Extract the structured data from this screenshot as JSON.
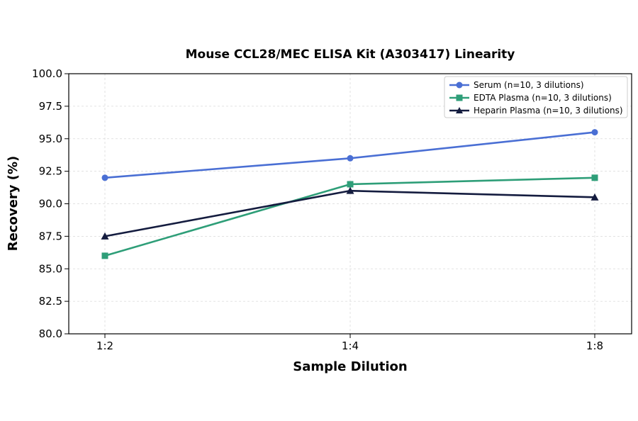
{
  "chart_data": {
    "type": "line",
    "title": "Mouse CCL28/MEC ELISA Kit (A303417) Linearity",
    "xlabel": "Sample Dilution",
    "ylabel": "Recovery (%)",
    "categories": [
      "1:2",
      "1:4",
      "1:8"
    ],
    "ylim": [
      80.0,
      100.0
    ],
    "yticks": [
      "80.0",
      "82.5",
      "85.0",
      "87.5",
      "90.0",
      "92.5",
      "95.0",
      "97.5",
      "100.0"
    ],
    "grid": true,
    "legend_position": "top-right",
    "series": [
      {
        "name": "Serum (n=10, 3 dilutions)",
        "values": [
          92.0,
          93.5,
          95.5
        ],
        "color": "#4a6fd4",
        "marker": "circle"
      },
      {
        "name": "EDTA Plasma (n=10, 3 dilutions)",
        "values": [
          86.0,
          91.5,
          92.0
        ],
        "color": "#2e9e78",
        "marker": "square"
      },
      {
        "name": "Heparin Plasma (n=10, 3 dilutions)",
        "values": [
          87.5,
          91.0,
          90.5
        ],
        "color": "#141c3f",
        "marker": "triangle"
      }
    ]
  }
}
